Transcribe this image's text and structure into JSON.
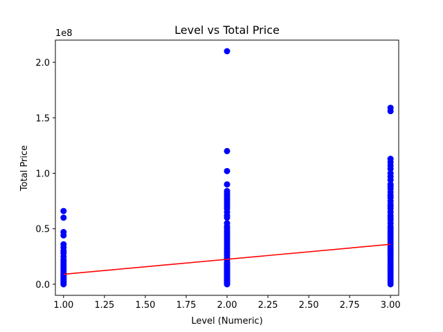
{
  "chart_data": {
    "type": "scatter",
    "title": "Level vs Total Price",
    "xlabel": "Level (Numeric)",
    "ylabel": "Total Price",
    "y_offset_label": "1e8",
    "xlim": [
      0.95,
      3.05
    ],
    "ylim": [
      -0.1,
      2.2
    ],
    "x_ticks": [
      1.0,
      1.25,
      1.5,
      1.75,
      2.0,
      2.25,
      2.5,
      2.75,
      3.0
    ],
    "x_tick_labels": [
      "1.00",
      "1.25",
      "1.50",
      "1.75",
      "2.00",
      "2.25",
      "2.50",
      "2.75",
      "3.00"
    ],
    "y_ticks": [
      0.0,
      0.5,
      1.0,
      1.5,
      2.0
    ],
    "y_tick_labels": [
      "0.0",
      "0.5",
      "1.0",
      "1.5",
      "2.0"
    ],
    "grid": false,
    "series": [
      {
        "name": "Total Price",
        "kind": "scatter",
        "color": "#0000ff",
        "points": [
          [
            1,
            0.0
          ],
          [
            1,
            0.01
          ],
          [
            1,
            0.02
          ],
          [
            1,
            0.03
          ],
          [
            1,
            0.04
          ],
          [
            1,
            0.05
          ],
          [
            1,
            0.06
          ],
          [
            1,
            0.07
          ],
          [
            1,
            0.08
          ],
          [
            1,
            0.09
          ],
          [
            1,
            0.1
          ],
          [
            1,
            0.12
          ],
          [
            1,
            0.14
          ],
          [
            1,
            0.16
          ],
          [
            1,
            0.18
          ],
          [
            1,
            0.2
          ],
          [
            1,
            0.22
          ],
          [
            1,
            0.25
          ],
          [
            1,
            0.28
          ],
          [
            1,
            0.3
          ],
          [
            1,
            0.33
          ],
          [
            1,
            0.36
          ],
          [
            1,
            0.44
          ],
          [
            1,
            0.47
          ],
          [
            1,
            0.6
          ],
          [
            1,
            0.66
          ],
          [
            2,
            0.0
          ],
          [
            2,
            0.01
          ],
          [
            2,
            0.02
          ],
          [
            2,
            0.03
          ],
          [
            2,
            0.04
          ],
          [
            2,
            0.05
          ],
          [
            2,
            0.06
          ],
          [
            2,
            0.07
          ],
          [
            2,
            0.08
          ],
          [
            2,
            0.09
          ],
          [
            2,
            0.1
          ],
          [
            2,
            0.11
          ],
          [
            2,
            0.12
          ],
          [
            2,
            0.13
          ],
          [
            2,
            0.14
          ],
          [
            2,
            0.15
          ],
          [
            2,
            0.16
          ],
          [
            2,
            0.17
          ],
          [
            2,
            0.18
          ],
          [
            2,
            0.19
          ],
          [
            2,
            0.2
          ],
          [
            2,
            0.22
          ],
          [
            2,
            0.24
          ],
          [
            2,
            0.26
          ],
          [
            2,
            0.28
          ],
          [
            2,
            0.3
          ],
          [
            2,
            0.32
          ],
          [
            2,
            0.34
          ],
          [
            2,
            0.36
          ],
          [
            2,
            0.38
          ],
          [
            2,
            0.4
          ],
          [
            2,
            0.42
          ],
          [
            2,
            0.44
          ],
          [
            2,
            0.46
          ],
          [
            2,
            0.48
          ],
          [
            2,
            0.5
          ],
          [
            2,
            0.52
          ],
          [
            2,
            0.55
          ],
          [
            2,
            0.6
          ],
          [
            2,
            0.62
          ],
          [
            2,
            0.65
          ],
          [
            2,
            0.68
          ],
          [
            2,
            0.7
          ],
          [
            2,
            0.72
          ],
          [
            2,
            0.74
          ],
          [
            2,
            0.76
          ],
          [
            2,
            0.78
          ],
          [
            2,
            0.8
          ],
          [
            2,
            0.82
          ],
          [
            2,
            0.84
          ],
          [
            2,
            0.9
          ],
          [
            2,
            1.02
          ],
          [
            2,
            1.2
          ],
          [
            2,
            2.1
          ],
          [
            3,
            0.0
          ],
          [
            3,
            0.02
          ],
          [
            3,
            0.04
          ],
          [
            3,
            0.06
          ],
          [
            3,
            0.08
          ],
          [
            3,
            0.1
          ],
          [
            3,
            0.12
          ],
          [
            3,
            0.14
          ],
          [
            3,
            0.16
          ],
          [
            3,
            0.18
          ],
          [
            3,
            0.2
          ],
          [
            3,
            0.22
          ],
          [
            3,
            0.24
          ],
          [
            3,
            0.26
          ],
          [
            3,
            0.28
          ],
          [
            3,
            0.3
          ],
          [
            3,
            0.32
          ],
          [
            3,
            0.34
          ],
          [
            3,
            0.36
          ],
          [
            3,
            0.38
          ],
          [
            3,
            0.4
          ],
          [
            3,
            0.42
          ],
          [
            3,
            0.44
          ],
          [
            3,
            0.46
          ],
          [
            3,
            0.48
          ],
          [
            3,
            0.5
          ],
          [
            3,
            0.52
          ],
          [
            3,
            0.55
          ],
          [
            3,
            0.58
          ],
          [
            3,
            0.6
          ],
          [
            3,
            0.62
          ],
          [
            3,
            0.65
          ],
          [
            3,
            0.68
          ],
          [
            3,
            0.7
          ],
          [
            3,
            0.72
          ],
          [
            3,
            0.75
          ],
          [
            3,
            0.78
          ],
          [
            3,
            0.8
          ],
          [
            3,
            0.83
          ],
          [
            3,
            0.86
          ],
          [
            3,
            0.88
          ],
          [
            3,
            0.9
          ],
          [
            3,
            0.94
          ],
          [
            3,
            0.97
          ],
          [
            3,
            1.0
          ],
          [
            3,
            1.04
          ],
          [
            3,
            1.07
          ],
          [
            3,
            1.1
          ],
          [
            3,
            1.13
          ],
          [
            3,
            1.56
          ],
          [
            3,
            1.59
          ]
        ]
      },
      {
        "name": "Trend line",
        "kind": "line",
        "color": "#ff0000",
        "points": [
          [
            1.0,
            0.09
          ],
          [
            3.0,
            0.36
          ]
        ]
      }
    ]
  }
}
